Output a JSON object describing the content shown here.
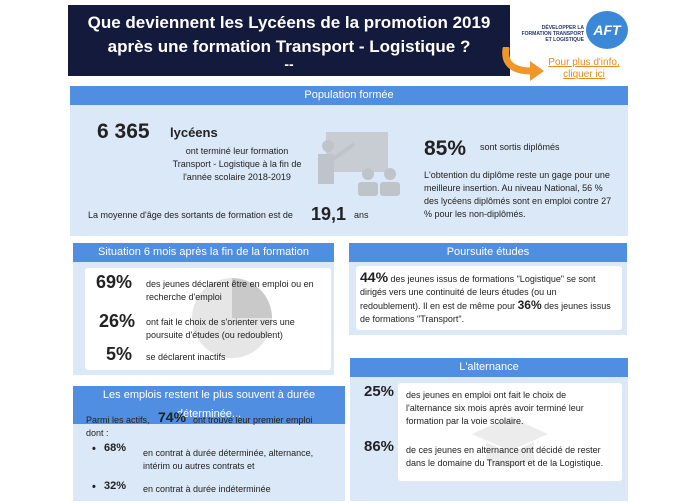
{
  "header": {
    "title_line1": "Que deviennent les Lycéens de la promotion 2019",
    "title_line2": "après une formation Transport - Logistique ?",
    "title_dash": "--"
  },
  "logo": {
    "tagline": "DÉVELOPPER LA FORMATION TRANSPORT ET LOGISTIQUE",
    "name": "AFT"
  },
  "more_info_link": "Pour plus d'info, cliquer ici",
  "population": {
    "bar_label": "Population formée",
    "count": "6 365",
    "count_unit": "lycéens",
    "desc": "ont terminé leur formation Transport - Logistique à la fin de l'année scolaire 2018-2019",
    "age_text": "La moyenne d'âge des sortants de formation est de",
    "age_value": "19,1",
    "age_unit": "ans",
    "graduate_pct": "85%",
    "graduate_text": "sont sortis diplômés",
    "graduate_desc": "L'obtention du diplôme reste un gage pour une meilleure insertion. Au niveau National, 56 % des lycéens diplômés sont en emploi contre 27 % pour les non-diplômés."
  },
  "situation": {
    "bar_label": "Situation 6 mois après la fin de la formation",
    "rows": [
      {
        "pct": "69%",
        "text": "des jeunes déclarent être en emploi ou en recherche d'emploi"
      },
      {
        "pct": "26%",
        "text": "ont fait le choix de s'orienter vers une poursuite d'études (ou redoublent)"
      },
      {
        "pct": "5%",
        "text": "se déclarent inactifs"
      }
    ]
  },
  "poursuite": {
    "bar_label": "Poursuite études",
    "pct1": "44%",
    "text1": "des jeunes issus de formations \"Logistique\" se sont dirigés vers une continuité de leurs études (ou un redoublement). Il en est de même pour",
    "pct2": "36%",
    "text2": "des jeunes issus de formations \"Transport\"."
  },
  "emplois": {
    "bar_label": "Les emplois restent le plus souvent à durée déterminée...",
    "intro_a": "Parmi les actifs,",
    "intro_pct": "74%",
    "intro_b": "ont trouvé leur premier emploi",
    "intro_c": "dont :",
    "items": [
      {
        "pct": "68%",
        "text": "en contrat à durée déterminée, alternance, intérim ou autres contrats et"
      },
      {
        "pct": "32%",
        "text": "en contrat à durée indéterminée"
      }
    ]
  },
  "alternance": {
    "bar_label": "L'alternance",
    "rows": [
      {
        "pct": "25%",
        "text": "des jeunes en emploi ont fait le choix de l'alternance six mois après avoir terminé leur formation par la voie scolaire."
      },
      {
        "pct": "86%",
        "text": "de ces jeunes en alternance ont décidé de rester dans le domaine du Transport et de la Logistique."
      }
    ]
  },
  "colors": {
    "header_bg": "#141a3b",
    "bar_blue": "#4f8ee0",
    "panel_light": "#dbe8f8",
    "link_orange": "#e88a1c"
  }
}
